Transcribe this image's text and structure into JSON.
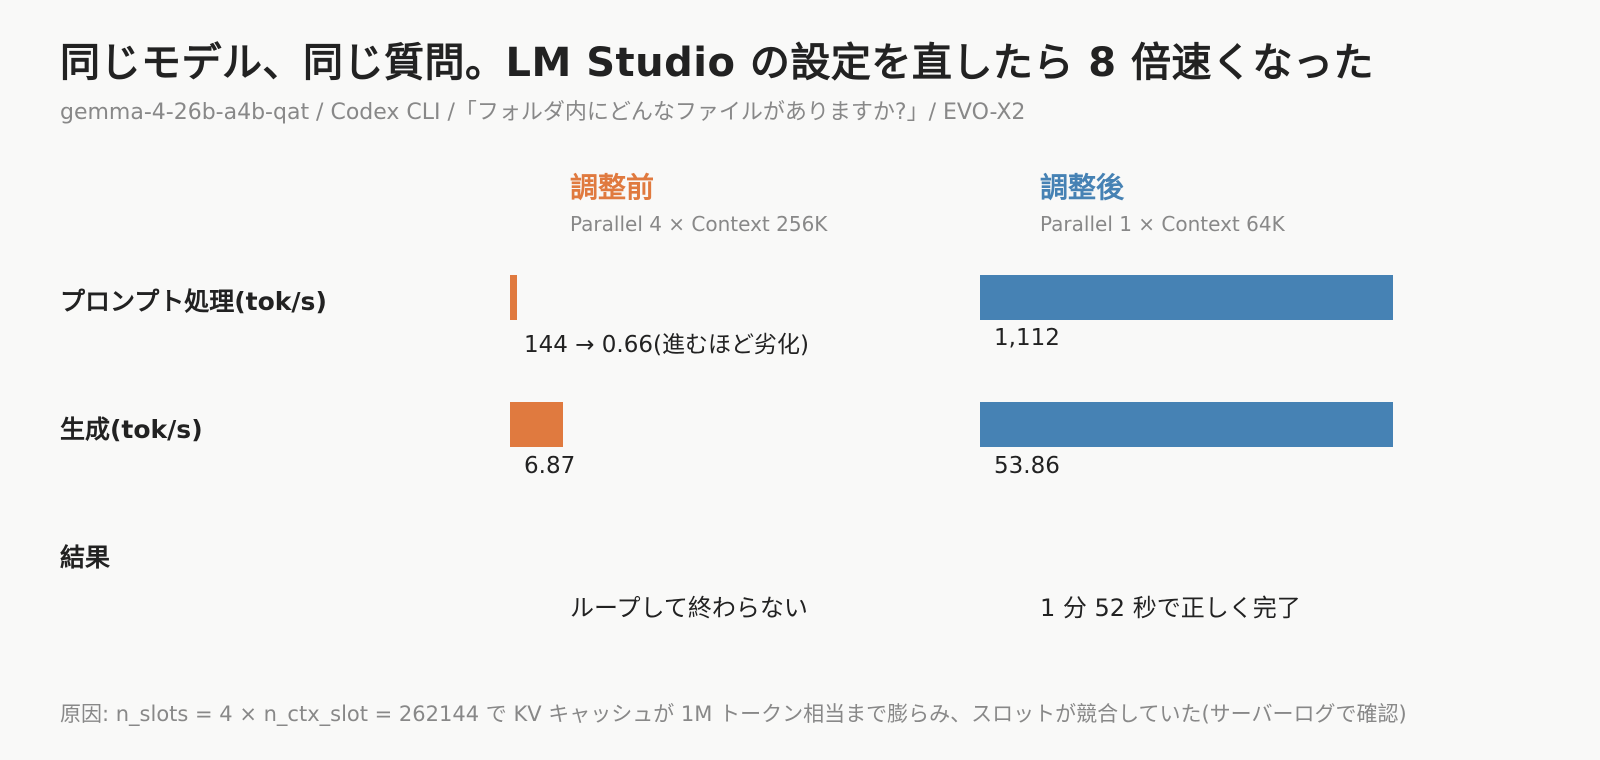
{
  "title": "同じモデル、同じ質問。LM Studio の設定を直したら 8 倍速くなった",
  "subtitle": "gemma-4-26b-a4b-qat / Codex CLI /「フォルダ内にどんなファイルがありますか?」/ EVO-X2",
  "colors": {
    "before": "#e07a3f",
    "after": "#4682b4"
  },
  "columns": {
    "before": {
      "name": "調整前",
      "desc": "Parallel 4 × Context 256K"
    },
    "after": {
      "name": "調整後",
      "desc": "Parallel 1 × Context 64K"
    }
  },
  "rows": {
    "prompt": {
      "label": "プロンプト処理(tok/s)",
      "before_text": "144 → 0.66(進むほど劣化)",
      "after_text": "1,112"
    },
    "gen": {
      "label": "生成(tok/s)",
      "before_text": "6.87",
      "after_text": "53.86"
    },
    "result": {
      "label": "結果",
      "before_text": "ループして終わらない",
      "after_text": "1 分 52 秒で正しく完了"
    }
  },
  "footer": "原因: n_slots = 4 × n_ctx_slot = 262144 で KV キャッシュが 1M トークン相当まで膨らみ、スロットが競合していた(サーバーログで確認)",
  "chart_data": {
    "type": "bar",
    "categories": [
      "プロンプト処理(tok/s)",
      "生成(tok/s)"
    ],
    "series": [
      {
        "name": "調整前",
        "values": [
          0.66,
          6.87
        ]
      },
      {
        "name": "調整後",
        "values": [
          1112,
          53.86
        ]
      }
    ]
  }
}
